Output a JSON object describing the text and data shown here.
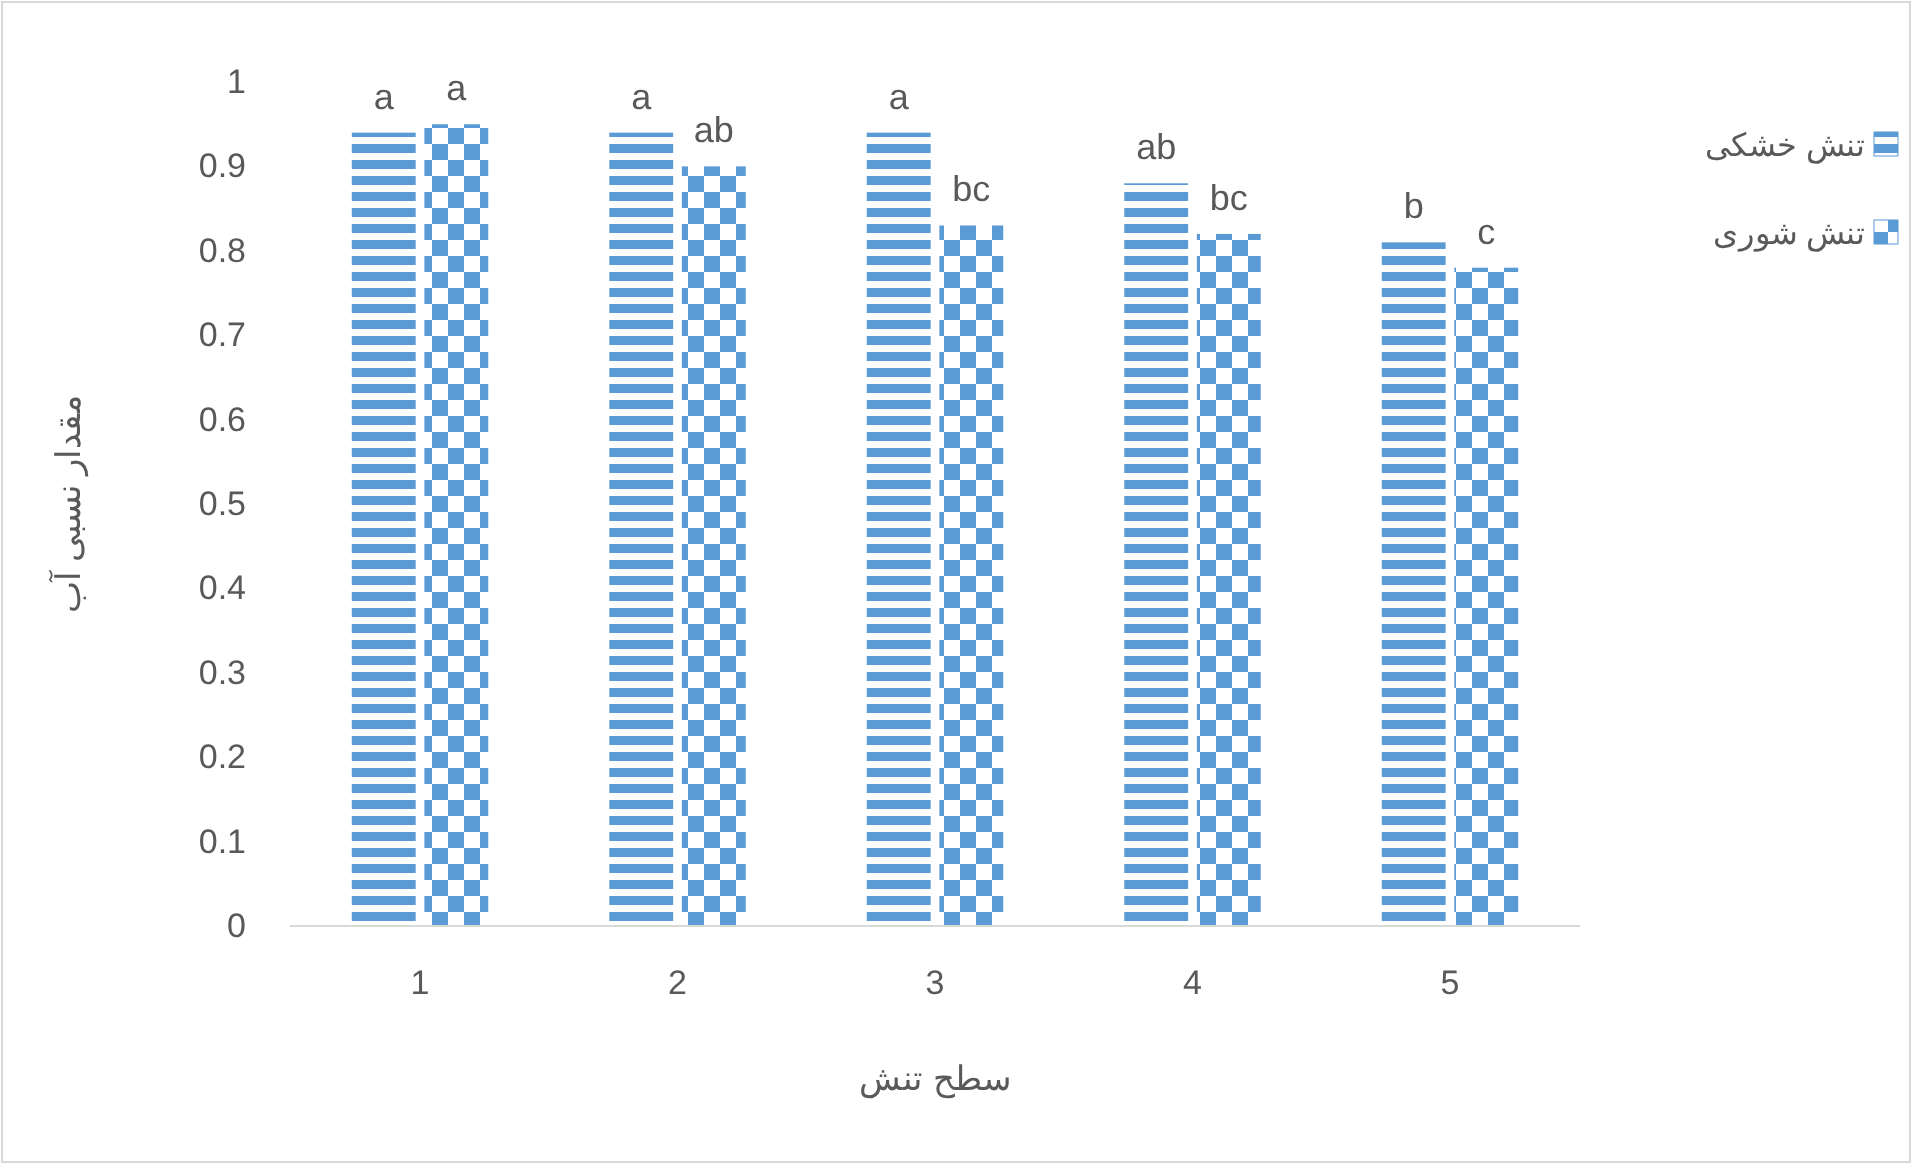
{
  "chart_data": {
    "type": "bar",
    "xlabel": "سطح تنش",
    "ylabel": "مقدار نسبی آب",
    "categories": [
      "1",
      "2",
      "3",
      "4",
      "5"
    ],
    "series": [
      {
        "name": "تنش خشکی",
        "color": "#5b9bd5",
        "values": [
          0.94,
          0.94,
          0.94,
          0.88,
          0.81
        ]
      },
      {
        "name": "تنش شوری",
        "color": "#5b9bd5",
        "values": [
          0.95,
          0.9,
          0.83,
          0.82,
          0.78
        ]
      }
    ],
    "ylim": [
      0,
      1
    ],
    "yticks": [
      0,
      0.1,
      0.2,
      0.3,
      0.4,
      0.5,
      0.6,
      0.7,
      0.8,
      0.9,
      1
    ],
    "grid": false,
    "legend": "right",
    "annotations": [
      {
        "text": "a",
        "x": "1",
        "y": 0.94
      },
      {
        "text": "a",
        "x": "1",
        "y": 0.95
      },
      {
        "text": "a",
        "x": "2",
        "y": 0.94
      },
      {
        "text": "ab",
        "x": "2",
        "y": 0.9
      },
      {
        "text": "a",
        "x": "3",
        "y": 0.94
      },
      {
        "text": "bc",
        "x": "3",
        "y": 0.83
      },
      {
        "text": "ab",
        "x": "4",
        "y": 0.88
      },
      {
        "text": "bc",
        "x": "4",
        "y": 0.82
      },
      {
        "text": "b",
        "x": "5",
        "y": 0.81
      },
      {
        "text": "c",
        "x": "5",
        "y": 0.78
      }
    ]
  }
}
